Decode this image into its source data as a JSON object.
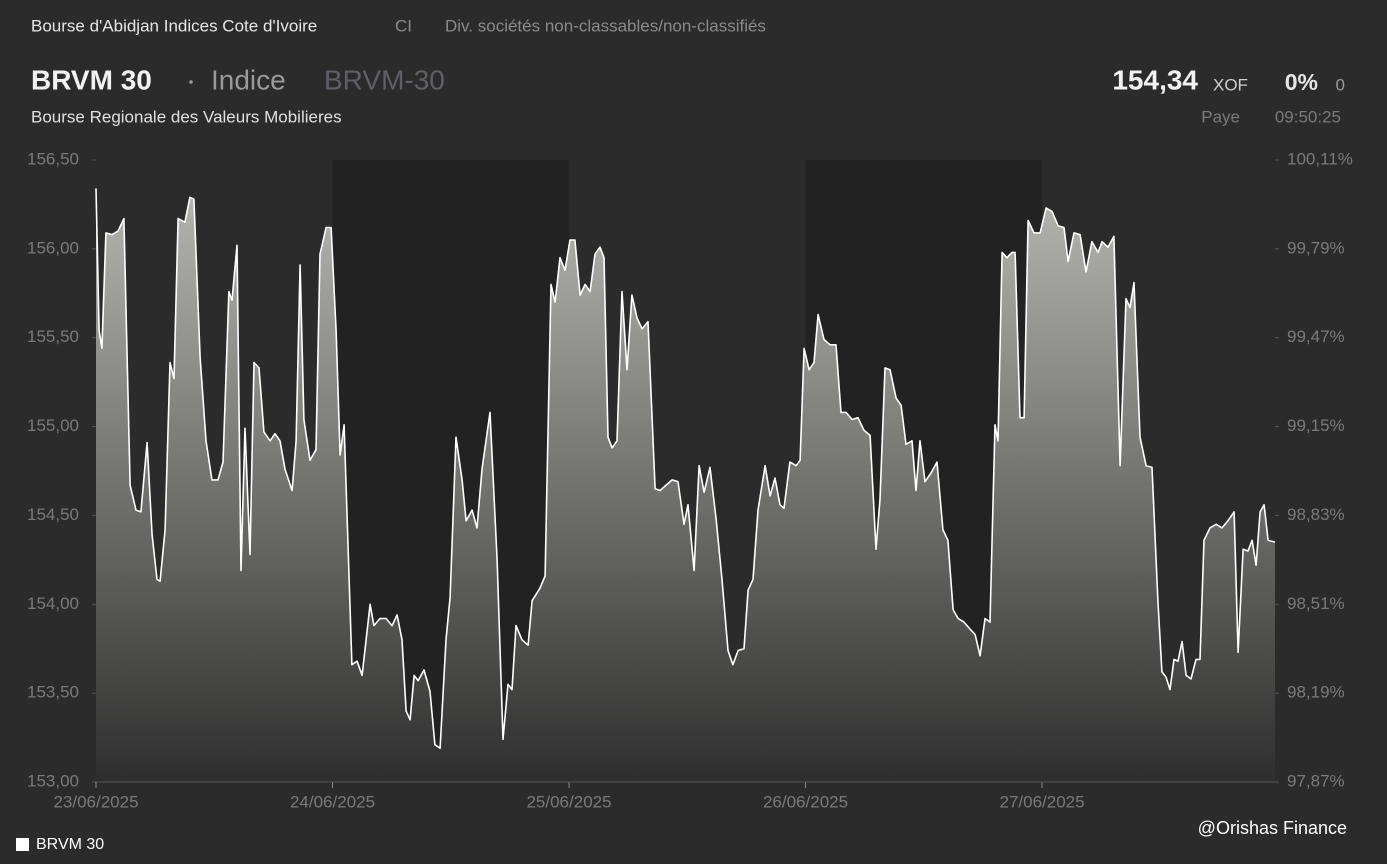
{
  "header": {
    "source": "Bourse d'Abidjan Indices Cote d'Ivoire",
    "country": "CI",
    "sector": "Div. sociétés non-classables/non-classifiés",
    "name": "BRVM 30",
    "kind": "Indice",
    "code": "BRVM-30",
    "exchange": "Bourse Regionale des Valeurs Mobilieres",
    "price": "154,34",
    "currency": "XOF",
    "change_pct": "0%",
    "change": "0",
    "status": "Paye",
    "time": "09:50:25"
  },
  "credit": "@Orishas Finance",
  "chart_data": {
    "type": "area",
    "legend": "bottom-left",
    "xlim": [
      0,
      4.985
    ],
    "xticks": [
      {
        "value": 0,
        "label": "23/06/2025"
      },
      {
        "value": 1,
        "label": "24/06/2025"
      },
      {
        "value": 2,
        "label": "25/06/2025"
      },
      {
        "value": 3,
        "label": "26/06/2025"
      },
      {
        "value": 4,
        "label": "27/06/2025"
      }
    ],
    "ylim": [
      153,
      156.5
    ],
    "yticks": [
      {
        "value": 153,
        "label": "153,00"
      },
      {
        "value": 153.5,
        "label": "153,50"
      },
      {
        "value": 154,
        "label": "154,00"
      },
      {
        "value": 154.5,
        "label": "154,50"
      },
      {
        "value": 155,
        "label": "155,00"
      },
      {
        "value": 155.5,
        "label": "155,50"
      },
      {
        "value": 156,
        "label": "156,00"
      },
      {
        "value": 156.5,
        "label": "156,50"
      }
    ],
    "y2lim": [
      97.87,
      100.11
    ],
    "y2ticks": [
      {
        "value": 97.87,
        "label": "97,87%"
      },
      {
        "value": 98.19,
        "label": "98,19%"
      },
      {
        "value": 98.51,
        "label": "98,51%"
      },
      {
        "value": 98.83,
        "label": "98,83%"
      },
      {
        "value": 99.15,
        "label": "99,15%"
      },
      {
        "value": 99.47,
        "label": "99,47%"
      },
      {
        "value": 99.79,
        "label": "99,79%"
      },
      {
        "value": 100.11,
        "label": "100,11%"
      }
    ],
    "series": [
      {
        "name": "BRVM 30",
        "color": "#ffffff",
        "x": [
          0,
          0.013,
          0.025,
          0.042,
          0.068,
          0.093,
          0.118,
          0.144,
          0.169,
          0.19,
          0.216,
          0.237,
          0.258,
          0.271,
          0.292,
          0.313,
          0.33,
          0.347,
          0.376,
          0.397,
          0.414,
          0.44,
          0.465,
          0.49,
          0.516,
          0.537,
          0.562,
          0.575,
          0.596,
          0.613,
          0.63,
          0.651,
          0.668,
          0.689,
          0.71,
          0.736,
          0.757,
          0.778,
          0.799,
          0.829,
          0.846,
          0.863,
          0.879,
          0.905,
          0.93,
          0.947,
          0.973,
          0.994,
          1.015,
          1.032,
          1.049,
          1.082,
          1.104,
          1.125,
          1.159,
          1.175,
          1.201,
          1.226,
          1.252,
          1.273,
          1.294,
          1.311,
          1.328,
          1.345,
          1.362,
          1.387,
          1.412,
          1.433,
          1.455,
          1.48,
          1.497,
          1.522,
          1.548,
          1.565,
          1.59,
          1.611,
          1.632,
          1.666,
          1.696,
          1.721,
          1.742,
          1.759,
          1.776,
          1.801,
          1.827,
          1.844,
          1.877,
          1.899,
          1.924,
          1.941,
          1.962,
          1.983,
          2.004,
          2.025,
          2.047,
          2.068,
          2.089,
          2.11,
          2.131,
          2.148,
          2.165,
          2.182,
          2.203,
          2.224,
          2.245,
          2.266,
          2.288,
          2.309,
          2.334,
          2.364,
          2.385,
          2.41,
          2.436,
          2.461,
          2.486,
          2.503,
          2.529,
          2.55,
          2.571,
          2.596,
          2.622,
          2.647,
          2.672,
          2.693,
          2.715,
          2.74,
          2.757,
          2.778,
          2.799,
          2.829,
          2.85,
          2.871,
          2.892,
          2.909,
          2.934,
          2.96,
          2.977,
          2.994,
          3.015,
          3.036,
          3.053,
          3.078,
          3.104,
          3.129,
          3.15,
          3.171,
          3.197,
          3.222,
          3.247,
          3.273,
          3.298,
          3.315,
          3.336,
          3.357,
          3.383,
          3.404,
          3.425,
          3.45,
          3.467,
          3.484,
          3.505,
          3.531,
          3.556,
          3.581,
          3.602,
          3.624,
          3.645,
          3.67,
          3.696,
          3.717,
          3.738,
          3.759,
          3.78,
          3.801,
          3.814,
          3.831,
          3.852,
          3.873,
          3.886,
          3.907,
          3.924,
          3.941,
          3.966,
          3.992,
          4.017,
          4.042,
          4.068,
          4.093,
          4.11,
          4.135,
          4.161,
          4.186,
          4.211,
          4.237,
          4.254,
          4.279,
          4.304,
          4.33,
          4.355,
          4.372,
          4.389,
          4.414,
          4.44,
          4.465,
          4.49,
          4.507,
          4.524,
          4.541,
          4.558,
          4.575,
          4.592,
          4.609,
          4.63,
          4.651,
          4.668,
          4.685,
          4.71,
          4.736,
          4.761,
          4.786,
          4.812,
          4.829,
          4.85,
          4.871,
          4.888,
          4.905,
          4.922,
          4.939,
          4.956,
          4.985
        ],
        "values": [
          156.34,
          155.54,
          155.44,
          156.09,
          156.08,
          156.1,
          156.17,
          154.67,
          154.53,
          154.52,
          154.91,
          154.39,
          154.14,
          154.13,
          154.42,
          155.36,
          155.27,
          156.17,
          156.15,
          156.29,
          156.28,
          155.39,
          154.92,
          154.7,
          154.7,
          154.8,
          155.76,
          155.71,
          156.02,
          154.19,
          154.99,
          154.28,
          155.36,
          155.33,
          154.97,
          154.92,
          154.96,
          154.92,
          154.76,
          154.64,
          154.92,
          155.91,
          155.04,
          154.81,
          154.87,
          155.97,
          156.12,
          156.12,
          155.54,
          154.84,
          155.01,
          153.66,
          153.68,
          153.6,
          154.0,
          153.88,
          153.92,
          153.92,
          153.88,
          153.94,
          153.8,
          153.4,
          153.35,
          153.6,
          153.57,
          153.63,
          153.51,
          153.21,
          153.19,
          153.8,
          154.04,
          154.94,
          154.7,
          154.47,
          154.53,
          154.43,
          154.76,
          155.08,
          154.25,
          153.24,
          153.55,
          153.52,
          153.88,
          153.8,
          153.77,
          154.02,
          154.09,
          154.16,
          155.8,
          155.7,
          155.95,
          155.88,
          156.05,
          156.05,
          155.74,
          155.8,
          155.76,
          155.97,
          156.01,
          155.95,
          154.94,
          154.88,
          154.92,
          155.76,
          155.32,
          155.74,
          155.61,
          155.55,
          155.59,
          154.65,
          154.64,
          154.67,
          154.7,
          154.69,
          154.45,
          154.56,
          154.19,
          154.78,
          154.63,
          154.77,
          154.48,
          154.14,
          153.74,
          153.66,
          153.74,
          153.75,
          154.08,
          154.14,
          154.53,
          154.78,
          154.61,
          154.71,
          154.56,
          154.54,
          154.8,
          154.78,
          154.81,
          155.44,
          155.32,
          155.36,
          155.63,
          155.49,
          155.46,
          155.46,
          155.08,
          155.08,
          155.04,
          155.05,
          154.98,
          154.95,
          154.31,
          154.59,
          155.33,
          155.32,
          155.16,
          155.12,
          154.9,
          154.92,
          154.64,
          154.92,
          154.69,
          154.74,
          154.8,
          154.42,
          154.36,
          153.97,
          153.92,
          153.9,
          153.86,
          153.83,
          153.71,
          153.92,
          153.9,
          155.01,
          154.92,
          155.98,
          155.95,
          155.98,
          155.98,
          155.05,
          155.05,
          156.16,
          156.09,
          156.09,
          156.23,
          156.21,
          156.13,
          156.12,
          155.93,
          156.09,
          156.08,
          155.87,
          156.04,
          155.98,
          156.04,
          156.01,
          156.07,
          154.78,
          155.72,
          155.67,
          155.81,
          154.94,
          154.78,
          154.77,
          154.02,
          153.62,
          153.59,
          153.52,
          153.69,
          153.68,
          153.79,
          153.6,
          153.58,
          153.69,
          153.69,
          154.36,
          154.43,
          154.45,
          154.43,
          154.47,
          154.52,
          153.73,
          154.31,
          154.3,
          154.36,
          154.22,
          154.52,
          154.56,
          154.36,
          154.35
        ]
      }
    ]
  }
}
